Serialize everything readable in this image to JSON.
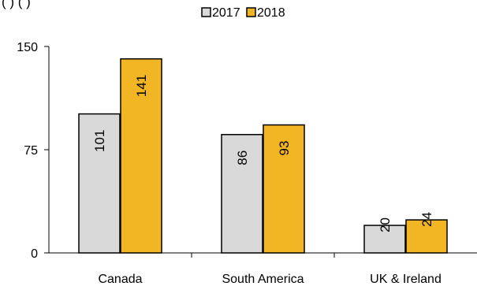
{
  "header_fragment": "(         ) (                         )",
  "chart_data": {
    "type": "bar",
    "categories": [
      "Canada",
      "South America",
      "UK & Ireland"
    ],
    "series": [
      {
        "name": "2017",
        "values": [
          101,
          86,
          20
        ],
        "color": "#d9d9d9"
      },
      {
        "name": "2018",
        "values": [
          141,
          93,
          24
        ],
        "color": "#f2b624"
      }
    ],
    "ylim": [
      0,
      150
    ],
    "yticks": [
      "0",
      "75",
      "150"
    ],
    "grid": false,
    "legend": "top-center",
    "data_labels": [
      [
        "101",
        "86",
        "20"
      ],
      [
        "141",
        "93",
        "24"
      ]
    ]
  }
}
